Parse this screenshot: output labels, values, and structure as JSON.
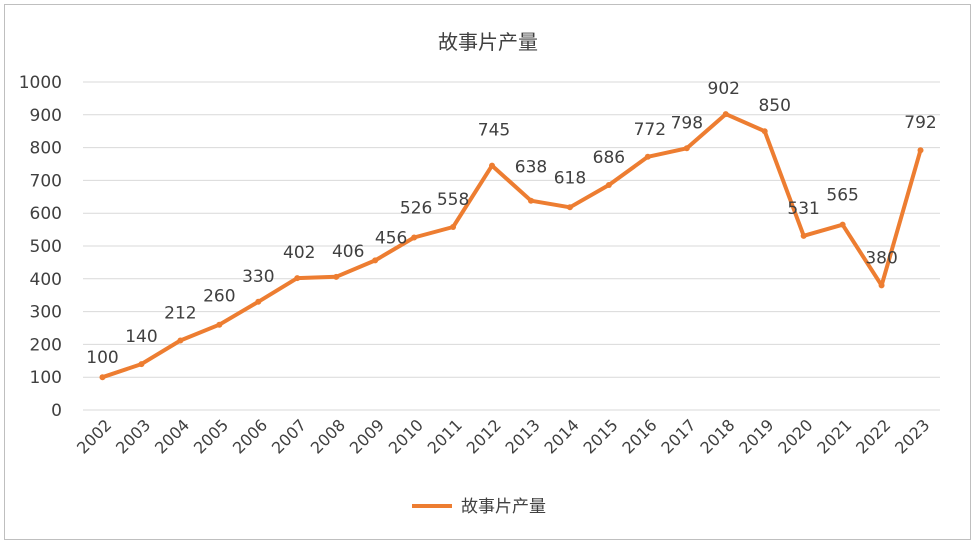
{
  "chart_data": {
    "type": "line",
    "title": "故事片产量",
    "categories": [
      "2002",
      "2003",
      "2004",
      "2005",
      "2006",
      "2007",
      "2008",
      "2009",
      "2010",
      "2011",
      "2012",
      "2013",
      "2014",
      "2015",
      "2016",
      "2017",
      "2018",
      "2019",
      "2020",
      "2021",
      "2022",
      "2023"
    ],
    "series": [
      {
        "name": "故事片产量",
        "color": "#ED7D31",
        "values": [
          100,
          140,
          212,
          260,
          330,
          402,
          406,
          456,
          526,
          558,
          745,
          638,
          618,
          686,
          772,
          798,
          902,
          850,
          531,
          565,
          380,
          792
        ]
      }
    ],
    "yticks": [
      "0",
      "100",
      "200",
      "300",
      "400",
      "500",
      "600",
      "700",
      "800",
      "900",
      "1000"
    ],
    "ylim": [
      0,
      1000
    ],
    "grid": true,
    "legend_position": "bottom",
    "xlabel": "",
    "ylabel": ""
  }
}
